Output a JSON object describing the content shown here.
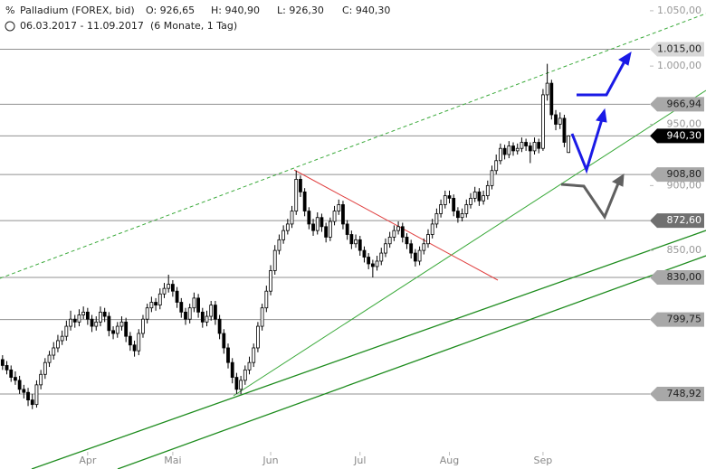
{
  "chart_data": {
    "type": "candlestick",
    "title": "Palladium (FOREX, bid)",
    "ohlc_labels": [
      "O: 926,65",
      "H: 940,90",
      "L: 926,30",
      "C: 940,30"
    ],
    "date_range": "06.03.2017 - 11.09.2017",
    "period": "(6 Monate, 1 Tag)",
    "log_scale": true,
    "ylim": [
      701,
      1060
    ],
    "yticks": [
      {
        "value": 1050,
        "label": "1.050,00"
      },
      {
        "value": 1000,
        "label": "1.000,00"
      },
      {
        "value": 950,
        "label": "950,00"
      },
      {
        "value": 900,
        "label": "900,00"
      },
      {
        "value": 850,
        "label": "850,00"
      }
    ],
    "xlim": [
      -0.6,
      165.3
    ],
    "xticks": [
      {
        "value": 20,
        "label": "Apr"
      },
      {
        "value": 40,
        "label": "Mai"
      },
      {
        "value": 63,
        "label": "Jun"
      },
      {
        "value": 84,
        "label": "Jul"
      },
      {
        "value": 105,
        "label": "Aug"
      },
      {
        "value": 127,
        "label": "Sep"
      }
    ],
    "levels": [
      {
        "value": 1015,
        "label": "1.015,00",
        "color": "#d8d8d8"
      },
      {
        "value": 966.94,
        "label": "966,94",
        "color": "#a8a8a8"
      },
      {
        "value": 940.3,
        "label": "940,30",
        "color": "#000000"
      },
      {
        "value": 908.8,
        "label": "908,80",
        "color": "#a8a8a8"
      },
      {
        "value": 872.6,
        "label": "872,60",
        "color": "#707070"
      },
      {
        "value": 830,
        "label": "830,00",
        "color": "#a8a8a8"
      },
      {
        "value": 799.75,
        "label": "799,75",
        "color": "#a8a8a8"
      },
      {
        "value": 748.92,
        "label": "748,92",
        "color": "#a8a8a8"
      }
    ],
    "series": [
      {
        "name": "Palladium",
        "up_color": "#ffffff",
        "down_color": "#000000",
        "values": [
          [
            772,
            775,
            765,
            768
          ],
          [
            768,
            771,
            762,
            765
          ],
          [
            765,
            768,
            757,
            760
          ],
          [
            760,
            764,
            755,
            758
          ],
          [
            758,
            761,
            749,
            752
          ],
          [
            752,
            755,
            746,
            750
          ],
          [
            750,
            753,
            741,
            745
          ],
          [
            745,
            749,
            739,
            742
          ],
          [
            742,
            758,
            740,
            755
          ],
          [
            755,
            765,
            752,
            762
          ],
          [
            762,
            773,
            759,
            770
          ],
          [
            770,
            778,
            767,
            775
          ],
          [
            775,
            784,
            772,
            780
          ],
          [
            780,
            789,
            777,
            785
          ],
          [
            785,
            792,
            782,
            788
          ],
          [
            788,
            799,
            785,
            795
          ],
          [
            795,
            806,
            792,
            800
          ],
          [
            800,
            803,
            794,
            798
          ],
          [
            798,
            807,
            795,
            803
          ],
          [
            803,
            809,
            800,
            805
          ],
          [
            805,
            808,
            796,
            800
          ],
          [
            800,
            803,
            791,
            795
          ],
          [
            795,
            802,
            792,
            798
          ],
          [
            798,
            809,
            795,
            805
          ],
          [
            805,
            808,
            798,
            802
          ],
          [
            802,
            805,
            788,
            792
          ],
          [
            792,
            795,
            786,
            790
          ],
          [
            790,
            798,
            787,
            795
          ],
          [
            795,
            802,
            792,
            798
          ],
          [
            798,
            801,
            784,
            788
          ],
          [
            788,
            791,
            778,
            782
          ],
          [
            782,
            785,
            774,
            778
          ],
          [
            778,
            793,
            775,
            790
          ],
          [
            790,
            803,
            787,
            800
          ],
          [
            800,
            811,
            797,
            808
          ],
          [
            808,
            816,
            805,
            812
          ],
          [
            812,
            815,
            806,
            810
          ],
          [
            810,
            822,
            807,
            818
          ],
          [
            818,
            826,
            815,
            822
          ],
          [
            822,
            832,
            819,
            825
          ],
          [
            825,
            828,
            816,
            820
          ],
          [
            820,
            823,
            808,
            812
          ],
          [
            812,
            815,
            801,
            805
          ],
          [
            805,
            808,
            796,
            800
          ],
          [
            800,
            811,
            797,
            808
          ],
          [
            808,
            819,
            805,
            815
          ],
          [
            815,
            818,
            801,
            805
          ],
          [
            805,
            808,
            794,
            798
          ],
          [
            798,
            806,
            795,
            802
          ],
          [
            802,
            813,
            799,
            810
          ],
          [
            810,
            813,
            796,
            800
          ],
          [
            800,
            803,
            786,
            790
          ],
          [
            790,
            793,
            776,
            780
          ],
          [
            780,
            783,
            766,
            770
          ],
          [
            770,
            773,
            756,
            760
          ],
          [
            760,
            763,
            749,
            752
          ],
          [
            752,
            761,
            749,
            758
          ],
          [
            758,
            768,
            755,
            765
          ],
          [
            765,
            774,
            762,
            770
          ],
          [
            770,
            783,
            767,
            780
          ],
          [
            780,
            798,
            777,
            795
          ],
          [
            795,
            811,
            792,
            808
          ],
          [
            808,
            824,
            805,
            820
          ],
          [
            820,
            839,
            817,
            835
          ],
          [
            835,
            854,
            832,
            850
          ],
          [
            850,
            862,
            847,
            858
          ],
          [
            858,
            869,
            855,
            865
          ],
          [
            865,
            874,
            862,
            870
          ],
          [
            870,
            884,
            867,
            880
          ],
          [
            880,
            912,
            877,
            905
          ],
          [
            905,
            908,
            891,
            895
          ],
          [
            895,
            898,
            876,
            880
          ],
          [
            880,
            883,
            866,
            870
          ],
          [
            870,
            874,
            861,
            865
          ],
          [
            865,
            879,
            862,
            875
          ],
          [
            875,
            878,
            864,
            868
          ],
          [
            868,
            871,
            856,
            860
          ],
          [
            860,
            875,
            857,
            872
          ],
          [
            872,
            884,
            869,
            880
          ],
          [
            880,
            889,
            877,
            885
          ],
          [
            885,
            888,
            866,
            870
          ],
          [
            870,
            873,
            858,
            862
          ],
          [
            862,
            865,
            851,
            855
          ],
          [
            855,
            862,
            852,
            858
          ],
          [
            858,
            861,
            846,
            850
          ],
          [
            850,
            853,
            841,
            845
          ],
          [
            845,
            848,
            836,
            840
          ],
          [
            840,
            843,
            830,
            838
          ],
          [
            838,
            846,
            835,
            842
          ],
          [
            842,
            852,
            839,
            848
          ],
          [
            848,
            859,
            845,
            855
          ],
          [
            855,
            864,
            852,
            860
          ],
          [
            860,
            869,
            857,
            865
          ],
          [
            865,
            872,
            862,
            868
          ],
          [
            868,
            871,
            856,
            860
          ],
          [
            860,
            863,
            851,
            855
          ],
          [
            855,
            858,
            844,
            848
          ],
          [
            848,
            851,
            838,
            842
          ],
          [
            842,
            853,
            839,
            850
          ],
          [
            850,
            859,
            847,
            855
          ],
          [
            855,
            866,
            852,
            862
          ],
          [
            862,
            874,
            859,
            870
          ],
          [
            870,
            882,
            867,
            878
          ],
          [
            878,
            889,
            875,
            885
          ],
          [
            885,
            896,
            882,
            892
          ],
          [
            892,
            896,
            886,
            890
          ],
          [
            890,
            893,
            876,
            880
          ],
          [
            880,
            883,
            871,
            875
          ],
          [
            875,
            882,
            872,
            878
          ],
          [
            878,
            889,
            875,
            885
          ],
          [
            885,
            894,
            882,
            890
          ],
          [
            890,
            899,
            887,
            895
          ],
          [
            895,
            898,
            884,
            888
          ],
          [
            888,
            896,
            885,
            892
          ],
          [
            892,
            904,
            889,
            900
          ],
          [
            900,
            916,
            897,
            912
          ],
          [
            912,
            925,
            909,
            920
          ],
          [
            920,
            934,
            917,
            930
          ],
          [
            930,
            933,
            921,
            925
          ],
          [
            925,
            936,
            922,
            932
          ],
          [
            932,
            935,
            924,
            928
          ],
          [
            928,
            934,
            925,
            930
          ],
          [
            930,
            939,
            927,
            935
          ],
          [
            935,
            938,
            928,
            932
          ],
          [
            932,
            935,
            918,
            928
          ],
          [
            928,
            939,
            925,
            935
          ],
          [
            935,
            938,
            926,
            930
          ],
          [
            930,
            980,
            928,
            975
          ],
          [
            975,
            1002,
            970,
            985
          ],
          [
            985,
            988,
            954,
            958
          ],
          [
            958,
            962,
            945,
            950
          ],
          [
            950,
            960,
            946,
            955
          ],
          [
            955,
            958,
            931,
            935
          ],
          [
            926.65,
            940.9,
            926.3,
            940.3
          ]
        ]
      }
    ]
  }
}
